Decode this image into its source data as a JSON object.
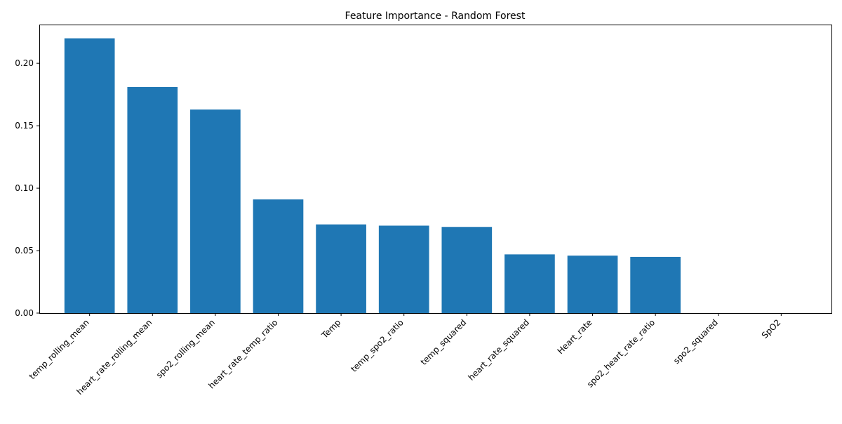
{
  "chart_data": {
    "type": "bar",
    "title": "Feature Importance - Random Forest",
    "xlabel": "",
    "ylabel": "",
    "categories": [
      "temp_rolling_mean",
      "heart_rate_rolling_mean",
      "spo2_rolling_mean",
      "heart_rate_temp_ratio",
      "Temp",
      "temp_spo2_ratio",
      "temp_squared",
      "heart_rate_squared",
      "Heart_rate",
      "spo2_heart_rate_ratio",
      "spo2_squared",
      "SpO2"
    ],
    "values": [
      0.22,
      0.181,
      0.163,
      0.091,
      0.071,
      0.07,
      0.069,
      0.047,
      0.046,
      0.045,
      0.0,
      0.0
    ],
    "ylim": [
      0,
      0.231
    ],
    "yticks": [
      "0.00",
      "0.05",
      "0.10",
      "0.15",
      "0.20"
    ],
    "ytick_values": [
      0,
      0.05,
      0.1,
      0.15,
      0.2
    ],
    "grid": false,
    "bar_color": "#1f77b4"
  }
}
